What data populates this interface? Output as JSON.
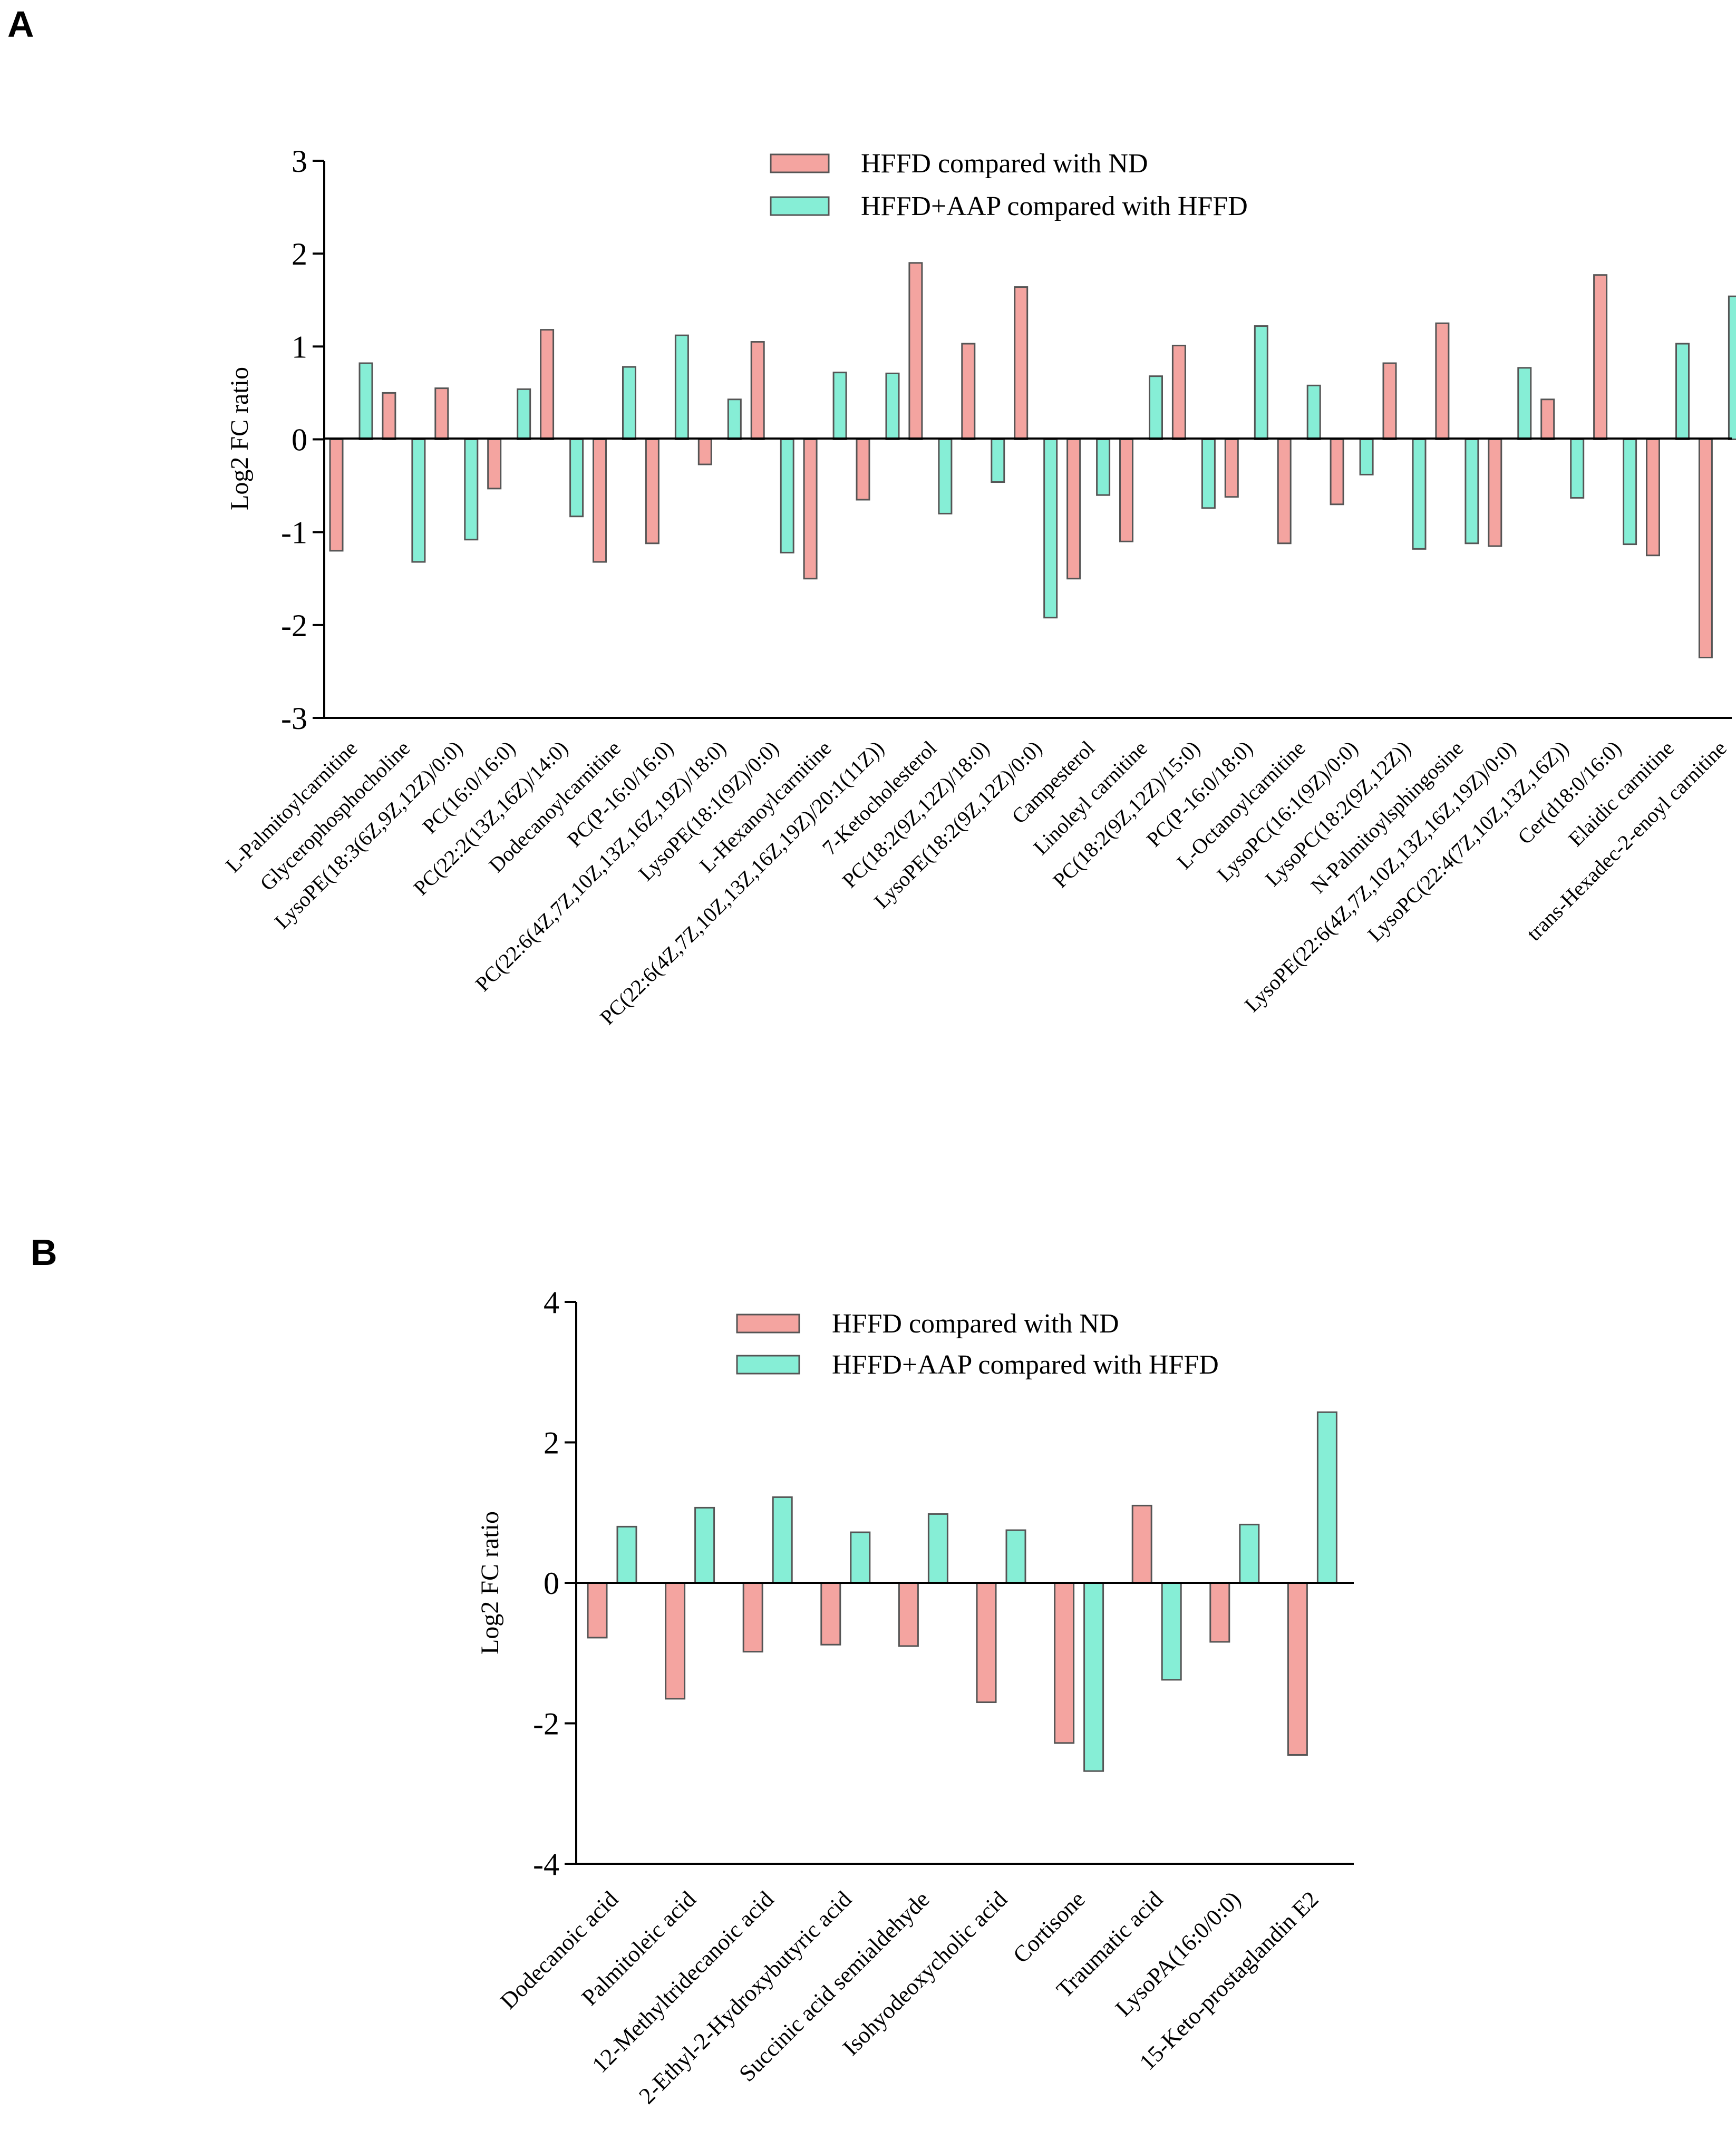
{
  "colors": {
    "hffd_vs_nd": "#f4a4a0",
    "aap_vs_hffd": "#86eed6",
    "outline": "#555555"
  },
  "chart_data": [
    {
      "panel": "A",
      "type": "bar",
      "title": "",
      "xlabel": "",
      "ylabel": "Log2 FC ratio",
      "ylim": [
        -3,
        3
      ],
      "yticks": [
        3,
        2,
        1,
        0,
        -1,
        -2,
        -3
      ],
      "legend_position": "top-center",
      "categories": [
        "L-Palmitoylcarnitine",
        "Glycerophosphocholine",
        "LysoPE(18:3(6Z,9Z,12Z)/0:0)",
        "PC(16:0/16:0)",
        "PC(22:2(13Z,16Z)/14:0)",
        "Dodecanoylcarnitine",
        "PC(P-16:0/16:0)",
        "PC(22:6(4Z,7Z,10Z,13Z,16Z,19Z)/18:0)",
        "LysoPE(18:1(9Z)/0:0)",
        "L-Hexanoylcarnitine",
        "PC(22:6(4Z,7Z,10Z,13Z,16Z,19Z)/20:1(11Z))",
        "7-Ketocholesterol",
        "PC(18:2(9Z,12Z)/18:0)",
        "LysoPE(18:2(9Z,12Z)/0:0)",
        "Campesterol",
        "Linoleyl carnitine",
        "PC(18:2(9Z,12Z)/15:0)",
        "PC(P-16:0/18:0)",
        "L-Octanoylcarnitine",
        "LysoPC(16:1(9Z)/0:0)",
        "LysoPC(18:2(9Z,12Z))",
        "N-Palmitoylsphingosine",
        "LysoPE(22:6(4Z,7Z,10Z,13Z,16Z,19Z)/0:0)",
        "LysoPC(22:4(7Z,10Z,13Z,16Z))",
        "Cer(d18:0/16:0)",
        "Elaidic carnitine",
        "trans-Hexadec-2-enoyl carnitine"
      ],
      "series": [
        {
          "name": "HFFD compared with ND",
          "values": [
            -1.2,
            0.5,
            0.55,
            -0.53,
            1.18,
            -1.32,
            -1.12,
            -0.27,
            1.05,
            -1.5,
            -0.65,
            1.9,
            1.03,
            1.64,
            -1.5,
            -1.1,
            1.01,
            -0.62,
            -1.12,
            -0.7,
            0.82,
            1.25,
            -1.15,
            0.43,
            1.77,
            -1.25,
            -2.35
          ]
        },
        {
          "name": "HFFD+AAP compared with HFFD",
          "values": [
            0.82,
            -1.32,
            -1.08,
            0.54,
            -0.83,
            0.78,
            1.12,
            0.43,
            -1.22,
            0.72,
            0.71,
            -0.8,
            -0.46,
            -1.92,
            -0.6,
            0.68,
            -0.74,
            1.22,
            0.58,
            -0.38,
            -1.18,
            -1.12,
            0.77,
            -0.63,
            -1.13,
            1.03,
            1.54
          ]
        }
      ]
    },
    {
      "panel": "B",
      "type": "bar",
      "title": "",
      "xlabel": "",
      "ylabel": "Log2 FC ratio",
      "ylim": [
        -4,
        4
      ],
      "yticks": [
        4,
        2,
        0,
        -2,
        -4
      ],
      "legend_position": "top-center",
      "categories": [
        "Dodecanoic acid",
        "Palmitoleic acid",
        "12-Methyltridecanoic acid",
        "2-Ethyl-2-Hydroxybutyric acid",
        "Succinic acid semialdehyde",
        "Isohyodeoxycholic acid",
        "Cortisone",
        "Traumatic acid",
        "LysoPA(16:0/0:0)",
        "15-Keto-prostaglandin E2"
      ],
      "series": [
        {
          "name": "HFFD compared with ND",
          "values": [
            -0.78,
            -1.65,
            -0.98,
            -0.88,
            -0.9,
            -1.7,
            -2.28,
            1.1,
            -0.84,
            -2.45
          ]
        },
        {
          "name": "HFFD+AAP compared with HFFD",
          "values": [
            0.8,
            1.07,
            1.22,
            0.72,
            0.98,
            0.75,
            -2.68,
            -1.38,
            0.83,
            2.43
          ]
        }
      ]
    }
  ]
}
